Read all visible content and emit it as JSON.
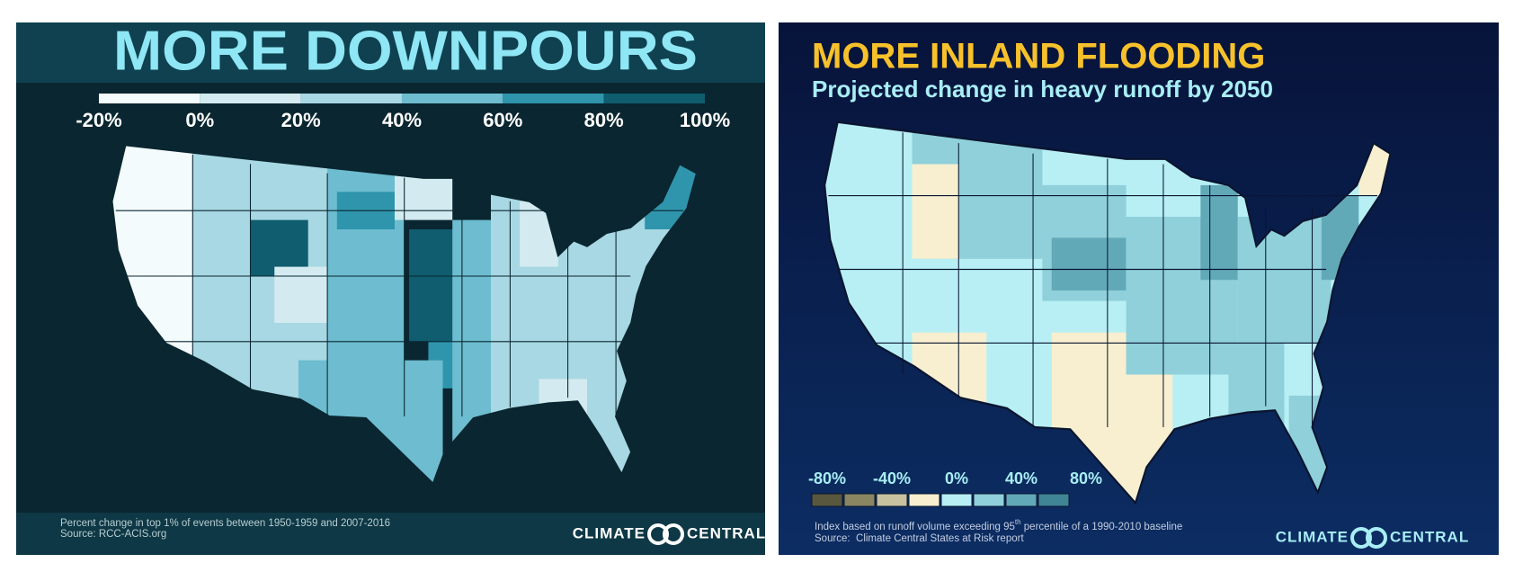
{
  "left_panel": {
    "title": "MORE DOWNPOURS",
    "legend": {
      "labels": [
        "-20%",
        "0%",
        "20%",
        "40%",
        "60%",
        "80%",
        "100%"
      ],
      "colors": [
        "#f4fbfc",
        "#d3ebf0",
        "#a8d8e3",
        "#6dbccf",
        "#2f95ad",
        "#0f5d6f"
      ]
    },
    "footnote": "Percent change in top 1% of events between 1950-1959 and 2007-2016",
    "source": "Source: RCC-ACIS.org",
    "logo": {
      "left": "CLIMATE",
      "right": "CENTRAL"
    }
  },
  "right_panel": {
    "title": "MORE INLAND FLOODING",
    "subtitle": "Projected change in heavy runoff by 2050",
    "legend": {
      "labels": [
        "-80%",
        "-40%",
        "0%",
        "40%",
        "80%"
      ],
      "colors": [
        "#59573e",
        "#8a8662",
        "#c7c1a0",
        "#f7efcf",
        "#b7eff5",
        "#8fd0da",
        "#62a9b8",
        "#3f8596"
      ]
    },
    "footnote": {
      "before": "Index based on runoff volume exceeding 95",
      "superscript": "th",
      "after": " percentile of a 1990-2010 baseline"
    },
    "source": "Source:  Climate Central States at Risk report",
    "logo": {
      "left": "CLIMATE",
      "right": "CENTRAL"
    }
  }
}
